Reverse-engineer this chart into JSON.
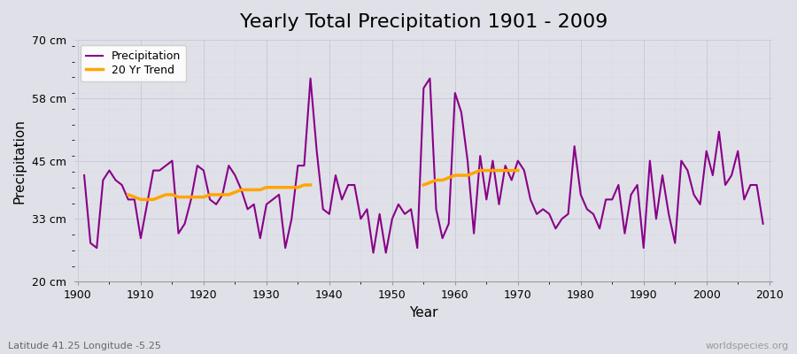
{
  "title": "Yearly Total Precipitation 1901 - 2009",
  "xlabel": "Year",
  "ylabel": "Precipitation",
  "subtitle": "Latitude 41.25 Longitude -5.25",
  "watermark": "worldspecies.org",
  "ylim": [
    20,
    70
  ],
  "yticks": [
    20,
    33,
    45,
    58,
    70
  ],
  "ytick_labels": [
    "20 cm",
    "33 cm",
    "45 cm",
    "58 cm",
    "70 cm"
  ],
  "years": [
    1901,
    1902,
    1903,
    1904,
    1905,
    1906,
    1907,
    1908,
    1909,
    1910,
    1911,
    1912,
    1913,
    1914,
    1915,
    1916,
    1917,
    1918,
    1919,
    1920,
    1921,
    1922,
    1923,
    1924,
    1925,
    1926,
    1927,
    1928,
    1929,
    1930,
    1931,
    1932,
    1933,
    1934,
    1935,
    1936,
    1937,
    1938,
    1939,
    1940,
    1941,
    1942,
    1943,
    1944,
    1945,
    1946,
    1947,
    1948,
    1949,
    1950,
    1951,
    1952,
    1953,
    1954,
    1955,
    1956,
    1957,
    1958,
    1959,
    1960,
    1961,
    1962,
    1963,
    1964,
    1965,
    1966,
    1967,
    1968,
    1969,
    1970,
    1971,
    1972,
    1973,
    1974,
    1975,
    1976,
    1977,
    1978,
    1979,
    1980,
    1981,
    1982,
    1983,
    1984,
    1985,
    1986,
    1987,
    1988,
    1989,
    1990,
    1991,
    1992,
    1993,
    1994,
    1995,
    1996,
    1997,
    1998,
    1999,
    2000,
    2001,
    2002,
    2003,
    2004,
    2005,
    2006,
    2007,
    2008,
    2009
  ],
  "precipitation": [
    42,
    28,
    27,
    41,
    43,
    41,
    40,
    37,
    37,
    29,
    36,
    43,
    43,
    44,
    45,
    30,
    32,
    37,
    44,
    43,
    37,
    36,
    38,
    44,
    42,
    39,
    35,
    36,
    29,
    36,
    37,
    38,
    27,
    33,
    44,
    44,
    62,
    47,
    35,
    34,
    42,
    37,
    40,
    40,
    33,
    35,
    26,
    34,
    26,
    33,
    36,
    34,
    35,
    27,
    60,
    62,
    35,
    29,
    32,
    59,
    55,
    45,
    30,
    46,
    37,
    45,
    36,
    44,
    41,
    45,
    43,
    37,
    34,
    35,
    34,
    31,
    33,
    34,
    48,
    38,
    35,
    34,
    31,
    37,
    37,
    40,
    30,
    38,
    40,
    27,
    45,
    33,
    42,
    34,
    28,
    45,
    43,
    38,
    36,
    47,
    42,
    51,
    40,
    42,
    47,
    37,
    40,
    40,
    32
  ],
  "trend_seg1_years": [
    1908,
    1909,
    1910,
    1911,
    1912,
    1913,
    1914,
    1915,
    1916,
    1917,
    1918,
    1919,
    1920,
    1921,
    1922,
    1923,
    1924,
    1925,
    1926,
    1927,
    1928,
    1929,
    1930,
    1931,
    1932,
    1933,
    1934,
    1935,
    1936,
    1937
  ],
  "trend_seg1_vals": [
    38,
    37.5,
    37,
    37,
    37,
    37.5,
    38,
    38,
    37.5,
    37.5,
    37.5,
    37.5,
    37.5,
    38,
    38,
    38,
    38,
    38.5,
    39,
    39,
    39,
    39,
    39.5,
    39.5,
    39.5,
    39.5,
    39.5,
    39.5,
    40,
    40
  ],
  "trend_seg2_years": [
    1955,
    1956,
    1957,
    1958,
    1959,
    1960,
    1961,
    1962,
    1963,
    1964,
    1965,
    1966,
    1967,
    1968,
    1969,
    1970
  ],
  "trend_seg2_vals": [
    40,
    40.5,
    41,
    41,
    41.5,
    42,
    42,
    42,
    42.5,
    43,
    43,
    43,
    43,
    43,
    43,
    43
  ],
  "precip_color": "#880088",
  "trend_color": "#FFA500",
  "bg_color": "#E0E0E8",
  "grid_color": "#C8C8D8",
  "title_fontsize": 16,
  "label_fontsize": 11,
  "tick_fontsize": 9,
  "subtitle_color": "#666666",
  "watermark_color": "#999999"
}
